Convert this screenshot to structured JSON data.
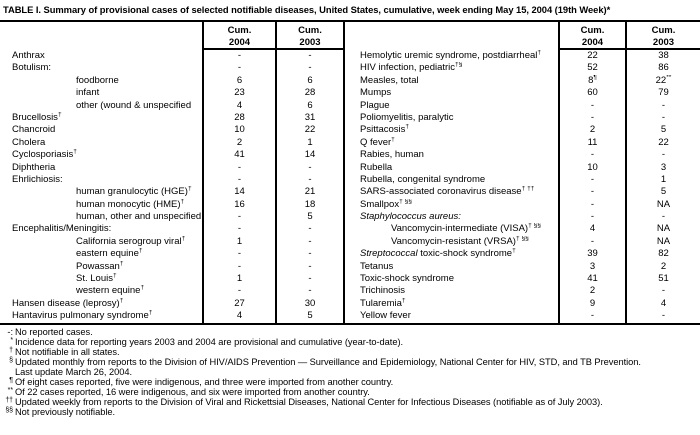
{
  "title": "TABLE I. Summary of provisional cases of selected notifiable diseases, United States, cumulative, week ending May 15, 2004 (19th Week)*",
  "table": {
    "column_headers": [
      {
        "label": "Cum.",
        "year": "2004"
      },
      {
        "label": "Cum.",
        "year": "2003"
      },
      {
        "label": "Cum.",
        "year": "2004"
      },
      {
        "label": "Cum.",
        "year": "2003"
      }
    ],
    "rows": [
      {
        "left": {
          "t": "Anthrax"
        },
        "left_2004": "-",
        "left_2003": "-",
        "right": {
          "t": "Hemolytic uremic syndrome, postdiarrheal",
          "sup": "†"
        },
        "right_2004": "22",
        "right_2003": "38"
      },
      {
        "left": {
          "t": "Botulism:"
        },
        "left_2004": "-",
        "left_2003": "-",
        "right": {
          "t": "HIV infection, pediatric",
          "sup": "†§"
        },
        "right_2004": "52",
        "right_2003": "86"
      },
      {
        "left": {
          "t": "foodborne",
          "ind": true
        },
        "left_2004": "6",
        "left_2003": "6",
        "right": {
          "t": "Measles, total"
        },
        "right_2004": {
          "t": "8",
          "sup": "¶"
        },
        "right_2003": {
          "t": "22",
          "sup": "**"
        }
      },
      {
        "left": {
          "t": "infant",
          "ind": true
        },
        "left_2004": "23",
        "left_2003": "28",
        "right": {
          "t": "Mumps"
        },
        "right_2004": "60",
        "right_2003": "79"
      },
      {
        "left": {
          "t": "other (wound & unspecified",
          "ind": true
        },
        "left_2004": "4",
        "left_2003": "6",
        "right": {
          "t": "Plague"
        },
        "right_2004": "-",
        "right_2003": "-"
      },
      {
        "left": {
          "t": "Brucellosis",
          "sup": "†"
        },
        "left_2004": "28",
        "left_2003": "31",
        "right": {
          "t": "Poliomyelitis, paralytic"
        },
        "right_2004": "-",
        "right_2003": "-"
      },
      {
        "left": {
          "t": "Chancroid"
        },
        "left_2004": "10",
        "left_2003": "22",
        "right": {
          "t": "Psittacosis",
          "sup": "†"
        },
        "right_2004": "2",
        "right_2003": "5"
      },
      {
        "left": {
          "t": "Cholera"
        },
        "left_2004": "2",
        "left_2003": "1",
        "right": {
          "t": "Q fever",
          "sup": "†"
        },
        "right_2004": "11",
        "right_2003": "22"
      },
      {
        "left": {
          "t": "Cyclosporiasis",
          "sup": "†"
        },
        "left_2004": "41",
        "left_2003": "14",
        "right": {
          "t": "Rabies, human"
        },
        "right_2004": "-",
        "right_2003": "-"
      },
      {
        "left": {
          "t": "Diphtheria"
        },
        "left_2004": "-",
        "left_2003": "-",
        "right": {
          "t": "Rubella"
        },
        "right_2004": "10",
        "right_2003": "3"
      },
      {
        "left": {
          "t": "Ehrlichiosis:"
        },
        "left_2004": "-",
        "left_2003": "-",
        "right": {
          "t": "Rubella, congenital syndrome"
        },
        "right_2004": "-",
        "right_2003": "1"
      },
      {
        "left": {
          "t": "human granulocytic (HGE)",
          "sup": "†",
          "ind": true
        },
        "left_2004": "14",
        "left_2003": "21",
        "right": {
          "t": "SARS-associated coronavirus disease",
          "sup": "† ††"
        },
        "right_2004": "-",
        "right_2003": "5"
      },
      {
        "left": {
          "t": "human monocytic (HME)",
          "sup": "†",
          "ind": true
        },
        "left_2004": "16",
        "left_2003": "18",
        "right": {
          "t": "Smallpox",
          "sup": "† §§"
        },
        "right_2004": "-",
        "right_2003": "NA"
      },
      {
        "left": {
          "t": "human, other and unspecified",
          "ind": true
        },
        "left_2004": "-",
        "left_2003": "5",
        "right": {
          "t": "Staphylococcus aureus:",
          "italic": "full"
        },
        "right_2004": "-",
        "right_2003": "-"
      },
      {
        "left": {
          "t": "Encephalitis/Meningitis:"
        },
        "left_2004": "-",
        "left_2003": "-",
        "right": {
          "t": "Vancomycin-intermediate (VISA)",
          "sup": "† §§",
          "ind": true
        },
        "right_2004": "4",
        "right_2003": "NA"
      },
      {
        "left": {
          "t": "California serogroup viral",
          "sup": "†",
          "ind": true
        },
        "left_2004": "1",
        "left_2003": "-",
        "right": {
          "t": "Vancomycin-resistant (VRSA)",
          "sup": "† §§",
          "ind": true
        },
        "right_2004": "-",
        "right_2003": "NA"
      },
      {
        "left": {
          "t": "eastern equine",
          "sup": "†",
          "ind": true
        },
        "left_2004": "-",
        "left_2003": "-",
        "right": {
          "t": "Streptococcal toxic-shock syndrome",
          "sup": "†",
          "italic": "first"
        },
        "right_2004": "39",
        "right_2003": "82"
      },
      {
        "left": {
          "t": "Powassan",
          "sup": "†",
          "ind": true
        },
        "left_2004": "-",
        "left_2003": "-",
        "right": {
          "t": "Tetanus"
        },
        "right_2004": "3",
        "right_2003": "2"
      },
      {
        "left": {
          "t": "St. Louis",
          "sup": "†",
          "ind": true
        },
        "left_2004": "1",
        "left_2003": "-",
        "right": {
          "t": "Toxic-shock syndrome"
        },
        "right_2004": "41",
        "right_2003": "51"
      },
      {
        "left": {
          "t": "western equine",
          "sup": "†",
          "ind": true
        },
        "left_2004": "-",
        "left_2003": "-",
        "right": {
          "t": "Trichinosis"
        },
        "right_2004": "2",
        "right_2003": "-"
      },
      {
        "left": {
          "t": "Hansen disease (leprosy)",
          "sup": "†"
        },
        "left_2004": "27",
        "left_2003": "30",
        "right": {
          "t": "Tularemia",
          "sup": "†"
        },
        "right_2004": "9",
        "right_2003": "4"
      },
      {
        "left": {
          "t": "Hantavirus pulmonary syndrome",
          "sup": "†"
        },
        "left_2004": "4",
        "left_2003": "5",
        "right": {
          "t": "Yellow fever"
        },
        "right_2004": "-",
        "right_2003": "-"
      }
    ]
  },
  "footnotes": [
    {
      "marker": "-:",
      "marker_superscript": false,
      "lines": [
        "No reported cases."
      ]
    },
    {
      "marker": "*",
      "marker_superscript": true,
      "lines": [
        "Incidence data for reporting years 2003 and 2004 are provisional and cumulative (year-to-date)."
      ]
    },
    {
      "marker": "†",
      "marker_superscript": true,
      "lines": [
        "Not notifiable in all states."
      ]
    },
    {
      "marker": "§",
      "marker_superscript": true,
      "lines": [
        "Updated monthly from reports to the Division of HIV/AIDS Prevention — Surveillance and Epidemiology, National Center for HIV, STD, and TB Prevention.",
        "Last update March 26, 2004."
      ]
    },
    {
      "marker": "¶",
      "marker_superscript": true,
      "lines": [
        "Of eight cases reported, five were indigenous, and three were imported from another country."
      ]
    },
    {
      "marker": "**",
      "marker_superscript": true,
      "lines": [
        "Of 22 cases reported, 16 were indigenous, and six were imported from another country."
      ]
    },
    {
      "marker": "††",
      "marker_superscript": true,
      "lines": [
        "Updated weekly from reports to the Division of Viral and Rickettsial Diseases, National Center for Infectious Diseases (notifiable as of July 2003)."
      ]
    },
    {
      "marker": "§§",
      "marker_superscript": true,
      "lines": [
        "Not previously notifiable."
      ]
    }
  ]
}
